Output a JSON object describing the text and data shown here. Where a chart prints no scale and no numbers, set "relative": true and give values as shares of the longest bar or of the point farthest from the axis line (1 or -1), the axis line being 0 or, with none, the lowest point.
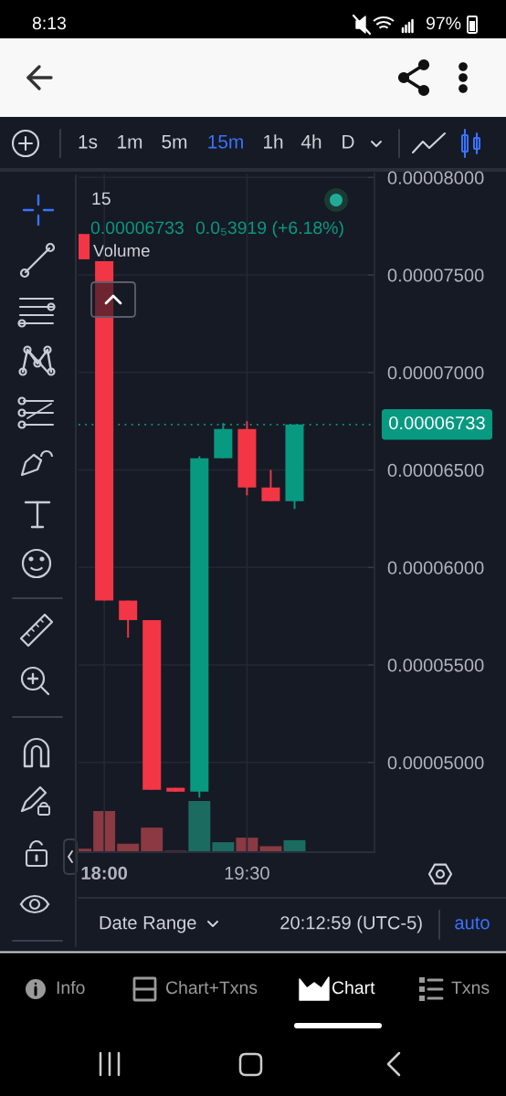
{
  "chart_data": [
    {
      "type": "candlestick",
      "x": [
        17.75,
        18,
        18.25,
        18.5,
        18.75,
        19,
        19.25,
        19.5,
        19.75,
        20
      ],
      "ohlc": [
        [
          7.71e-05,
          7.71e-05,
          7.58e-05,
          7.58e-05
        ],
        [
          7.57e-05,
          7.57e-05,
          5.83e-05,
          5.83e-05
        ],
        [
          5.83e-05,
          5.83e-05,
          5.64e-05,
          5.73e-05
        ],
        [
          5.73e-05,
          5.73e-05,
          4.86e-05,
          4.86e-05
        ],
        [
          4.87e-05,
          4.87e-05,
          4.85e-05,
          4.85e-05
        ],
        [
          4.85e-05,
          6.57e-05,
          4.82e-05,
          6.56e-05
        ],
        [
          6.56e-05,
          6.74e-05,
          6.56e-05,
          6.71e-05
        ],
        [
          6.71e-05,
          6.75e-05,
          6.37e-05,
          6.41e-05
        ],
        [
          6.41e-05,
          6.5e-05,
          6.34e-05,
          6.34e-05
        ],
        [
          6.34e-05,
          6.733e-05,
          6.3e-05,
          6.733e-05
        ]
      ],
      "colors": [
        "#f23645",
        "#f23645",
        "#f23645",
        "#f23645",
        "#f23645",
        "#089981",
        "#089981",
        "#f23645",
        "#f23645",
        "#089981"
      ],
      "xlim": [
        17.73,
        20.84
      ],
      "ylim": [
        4.54e-05,
        8.02e-05
      ],
      "xticks": [
        {
          "value": 18,
          "label": "18:00"
        },
        {
          "value": 19.5,
          "label": "19:30"
        }
      ],
      "yticks": [
        {
          "value": 5e-05,
          "label": "0.00005000"
        },
        {
          "value": 5.5e-05,
          "label": "0.00005500"
        },
        {
          "value": 6e-05,
          "label": "0.00006000"
        },
        {
          "value": 6.5e-05,
          "label": "0.00006500"
        },
        {
          "value": 7e-05,
          "label": "0.00007000"
        },
        {
          "value": 7.5e-05,
          "label": "0.00007500"
        },
        {
          "value": 8e-05,
          "label": "0.00008000"
        }
      ],
      "grid": true,
      "ref_lines": [
        {
          "axis": "y",
          "value": 6.733e-05,
          "label": "0.00006733",
          "color": "#089981",
          "line_style": "dotted"
        }
      ],
      "annotations": [
        "15",
        "0.00006733",
        "0.0₅3919 (+6.18%)"
      ]
    },
    {
      "type": "bar",
      "relative": true,
      "title": "Volume",
      "x": [
        17.75,
        18,
        18.25,
        18.5,
        18.75,
        19,
        19.25,
        19.5,
        19.75,
        20
      ],
      "xlim": [
        17.73,
        20.84
      ],
      "values": [
        0.05,
        0.8,
        0.15,
        0.47,
        0.01,
        1,
        0.18,
        0.27,
        0.1,
        0.22
      ],
      "colors": [
        "#8b3942",
        "#8b3942",
        "#8b3942",
        "#8b3942",
        "#8b3942",
        "#1c6b60",
        "#1c6b60",
        "#8b3942",
        "#8b3942",
        "#1c6b60"
      ],
      "tick_labels": false
    },
    {
      "type": "other",
      "annotations": [
        "8:13",
        "97%",
        "1s",
        "1m",
        "5m",
        "15m",
        "1h",
        "4h",
        "D",
        "Date Range",
        "20:12:59 (UTC-5)",
        "auto",
        "Info",
        "Chart+Txns",
        "Chart",
        "Txns"
      ]
    }
  ]
}
